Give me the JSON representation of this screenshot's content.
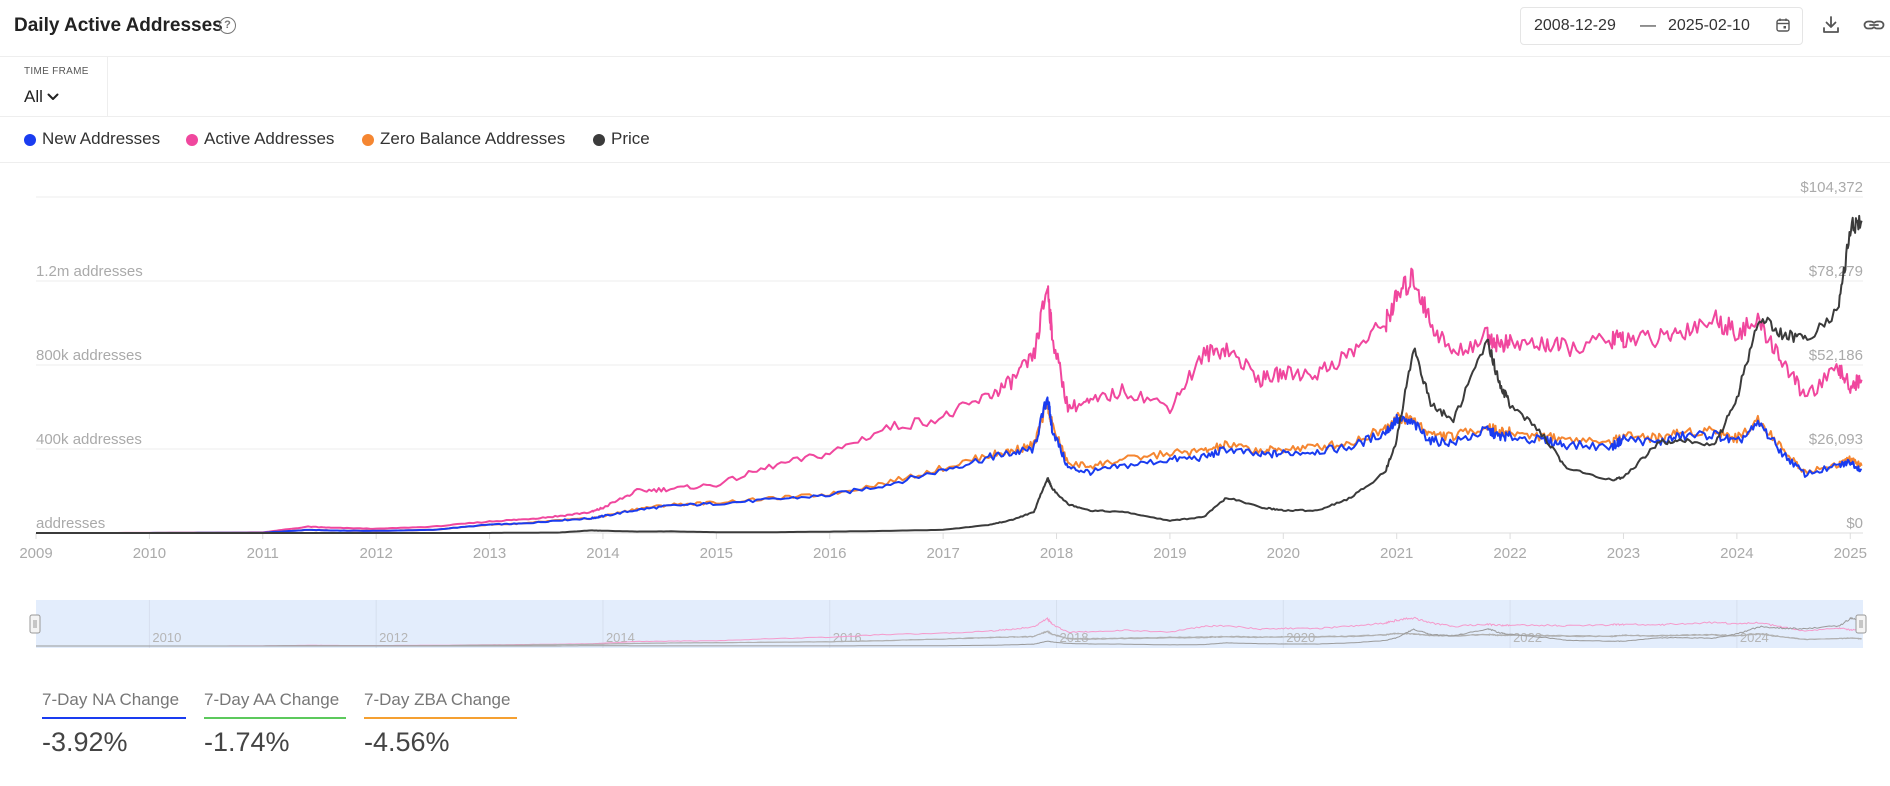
{
  "header": {
    "title": "Daily Active Addresses",
    "help_symbol": "?",
    "date_start": "2008-12-29",
    "date_sep": "—",
    "date_end": "2025-02-10"
  },
  "time_frame": {
    "label": "TIME FRAME",
    "value": "All"
  },
  "legend": [
    {
      "label": "New Addresses",
      "color": "#1a3cf0"
    },
    {
      "label": "Active Addresses",
      "color": "#f0479e"
    },
    {
      "label": "Zero Balance Addresses",
      "color": "#f58631"
    },
    {
      "label": "Price",
      "color": "#3b3b3b"
    }
  ],
  "chart_data": {
    "type": "line",
    "title": "",
    "x_range": [
      "2009-01-01",
      "2025-02-10"
    ],
    "y_left": {
      "label": "addresses",
      "ticks": [
        "addresses",
        "400k addresses",
        "800k addresses",
        "1.2m addresses"
      ],
      "tick_values": [
        0,
        400000,
        800000,
        1200000
      ],
      "range": [
        0,
        1600000
      ]
    },
    "y_right": {
      "label": "Price",
      "ticks": [
        "$0",
        "$26,093",
        "$52,186",
        "$78,279",
        "$104,372"
      ],
      "tick_values": [
        0,
        26093,
        52186,
        78279,
        104372
      ],
      "range": [
        0,
        104372
      ]
    },
    "x_ticks": [
      "2009",
      "2010",
      "2011",
      "2012",
      "2013",
      "2014",
      "2015",
      "2016",
      "2017",
      "2018",
      "2019",
      "2020",
      "2021",
      "2022",
      "2023",
      "2024",
      "2025"
    ],
    "navigator_ticks": [
      "2010",
      "2012",
      "2014",
      "2016",
      "2018",
      "2020",
      "2022",
      "2024"
    ],
    "x": [
      2009.0,
      2010.0,
      2010.5,
      2011.0,
      2011.4,
      2011.6,
      2012.0,
      2012.5,
      2013.0,
      2013.3,
      2013.6,
      2013.9,
      2014.0,
      2014.3,
      2014.6,
      2015.0,
      2015.5,
      2016.0,
      2016.5,
      2017.0,
      2017.4,
      2017.6,
      2017.8,
      2017.92,
      2017.96,
      2018.1,
      2018.3,
      2018.6,
      2019.0,
      2019.3,
      2019.5,
      2019.8,
      2020.0,
      2020.3,
      2020.6,
      2020.9,
      2021.0,
      2021.15,
      2021.3,
      2021.5,
      2021.8,
      2021.9,
      2022.0,
      2022.3,
      2022.5,
      2022.9,
      2023.0,
      2023.3,
      2023.5,
      2023.8,
      2024.0,
      2024.2,
      2024.4,
      2024.6,
      2024.9,
      2025.0,
      2025.1
    ],
    "series": [
      {
        "name": "New Addresses",
        "color": "#1a3cf0",
        "values": [
          0,
          200,
          800,
          1500,
          15000,
          12000,
          10000,
          15000,
          40000,
          45000,
          60000,
          70000,
          80000,
          110000,
          130000,
          140000,
          160000,
          180000,
          230000,
          300000,
          360000,
          380000,
          400000,
          650000,
          500000,
          310000,
          290000,
          320000,
          350000,
          360000,
          400000,
          370000,
          380000,
          390000,
          410000,
          480000,
          540000,
          520000,
          440000,
          430000,
          490000,
          460000,
          460000,
          440000,
          420000,
          410000,
          450000,
          430000,
          460000,
          470000,
          430000,
          520000,
          380000,
          280000,
          320000,
          340000,
          300000
        ]
      },
      {
        "name": "Active Addresses",
        "color": "#f0479e",
        "values": [
          0,
          300,
          1500,
          3000,
          30000,
          25000,
          20000,
          30000,
          55000,
          65000,
          80000,
          100000,
          120000,
          200000,
          210000,
          230000,
          320000,
          380000,
          500000,
          550000,
          650000,
          720000,
          840000,
          1180000,
          950000,
          600000,
          620000,
          680000,
          600000,
          850000,
          880000,
          730000,
          760000,
          760000,
          860000,
          1000000,
          1120000,
          1220000,
          1000000,
          850000,
          940000,
          900000,
          900000,
          900000,
          880000,
          920000,
          930000,
          920000,
          960000,
          1020000,
          960000,
          1000000,
          820000,
          650000,
          780000,
          700000,
          730000
        ]
      },
      {
        "name": "Zero Balance Addresses",
        "color": "#f58631",
        "values": [
          0,
          200,
          800,
          1500,
          15000,
          12000,
          10000,
          15000,
          40000,
          45000,
          60000,
          70000,
          80000,
          115000,
          135000,
          145000,
          165000,
          185000,
          240000,
          310000,
          370000,
          390000,
          420000,
          620000,
          520000,
          330000,
          320000,
          350000,
          380000,
          390000,
          420000,
          390000,
          400000,
          410000,
          430000,
          500000,
          550000,
          540000,
          470000,
          460000,
          510000,
          480000,
          480000,
          460000,
          450000,
          430000,
          470000,
          450000,
          480000,
          490000,
          450000,
          540000,
          400000,
          290000,
          330000,
          350000,
          320000
        ]
      },
      {
        "name": "Price",
        "color": "#3b3b3b",
        "values": [
          0,
          0,
          0,
          0,
          15,
          10,
          5,
          10,
          13,
          100,
          120,
          800,
          700,
          450,
          500,
          250,
          250,
          430,
          650,
          1000,
          2500,
          4000,
          6500,
          17000,
          14000,
          9000,
          7000,
          6500,
          3800,
          5000,
          11000,
          8000,
          7000,
          7000,
          11000,
          19000,
          29000,
          58000,
          40000,
          35000,
          60000,
          47000,
          40000,
          30000,
          20000,
          16500,
          17000,
          28000,
          29000,
          27000,
          42000,
          67000,
          62000,
          60000,
          70000,
          95000,
          97000
        ]
      }
    ]
  },
  "stats": [
    {
      "label": "7-Day NA Change",
      "value": "-3.92%",
      "color": "#1a3cf0"
    },
    {
      "label": "7-Day AA Change",
      "value": "-1.74%",
      "color": "#5cc95c"
    },
    {
      "label": "7-Day ZBA Change",
      "value": "-4.56%",
      "color": "#f5a031"
    }
  ]
}
